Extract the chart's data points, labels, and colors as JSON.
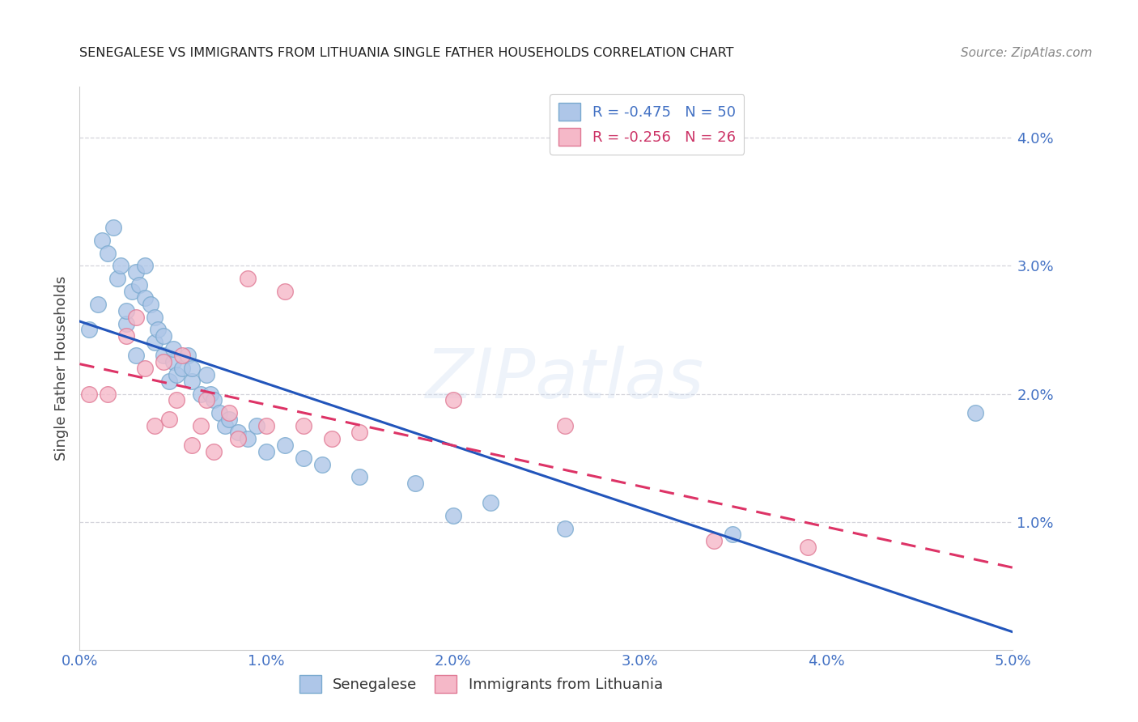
{
  "title": "SENEGALESE VS IMMIGRANTS FROM LITHUANIA SINGLE FATHER HOUSEHOLDS CORRELATION CHART",
  "source": "Source: ZipAtlas.com",
  "ylabel": "Single Father Households",
  "xlim": [
    0.0,
    0.05
  ],
  "ylim": [
    0.0,
    0.044
  ],
  "xticks": [
    0.0,
    0.01,
    0.02,
    0.03,
    0.04,
    0.05
  ],
  "xticklabels": [
    "0.0%",
    "1.0%",
    "2.0%",
    "3.0%",
    "4.0%",
    "5.0%"
  ],
  "yticks": [
    0.01,
    0.02,
    0.03,
    0.04
  ],
  "yticklabels": [
    "1.0%",
    "2.0%",
    "3.0%",
    "4.0%"
  ],
  "background_color": "#ffffff",
  "grid_color": "#d0d0d8",
  "watermark": "ZIPatlas",
  "senegalese_color": "#aec6e8",
  "senegalese_edge": "#7aaacf",
  "lithuania_color": "#f5b8c8",
  "lithuania_edge": "#e07a95",
  "blue_line_color": "#2255bb",
  "pink_line_color": "#dd3366",
  "tick_color": "#4472c4",
  "title_color": "#222222",
  "source_color": "#888888",
  "ylabel_color": "#444444",
  "senegalese_x": [
    0.0005,
    0.001,
    0.0012,
    0.0015,
    0.0018,
    0.002,
    0.0022,
    0.0025,
    0.0025,
    0.0028,
    0.003,
    0.003,
    0.0032,
    0.0035,
    0.0035,
    0.0038,
    0.004,
    0.004,
    0.0042,
    0.0045,
    0.0045,
    0.0048,
    0.005,
    0.005,
    0.0052,
    0.0055,
    0.0058,
    0.006,
    0.006,
    0.0065,
    0.0068,
    0.007,
    0.0072,
    0.0075,
    0.0078,
    0.008,
    0.0085,
    0.009,
    0.0095,
    0.01,
    0.011,
    0.012,
    0.013,
    0.015,
    0.018,
    0.02,
    0.022,
    0.026,
    0.035,
    0.048
  ],
  "senegalese_y": [
    0.025,
    0.027,
    0.032,
    0.031,
    0.033,
    0.029,
    0.03,
    0.0255,
    0.0265,
    0.028,
    0.023,
    0.0295,
    0.0285,
    0.0275,
    0.03,
    0.027,
    0.024,
    0.026,
    0.025,
    0.023,
    0.0245,
    0.021,
    0.0225,
    0.0235,
    0.0215,
    0.022,
    0.023,
    0.021,
    0.022,
    0.02,
    0.0215,
    0.02,
    0.0195,
    0.0185,
    0.0175,
    0.018,
    0.017,
    0.0165,
    0.0175,
    0.0155,
    0.016,
    0.015,
    0.0145,
    0.0135,
    0.013,
    0.0105,
    0.0115,
    0.0095,
    0.009,
    0.0185
  ],
  "lithuania_x": [
    0.0005,
    0.0015,
    0.0025,
    0.003,
    0.0035,
    0.004,
    0.0045,
    0.0048,
    0.0052,
    0.0055,
    0.006,
    0.0065,
    0.0068,
    0.0072,
    0.008,
    0.0085,
    0.009,
    0.01,
    0.011,
    0.012,
    0.0135,
    0.015,
    0.02,
    0.026,
    0.034,
    0.039
  ],
  "lithuania_y": [
    0.02,
    0.02,
    0.0245,
    0.026,
    0.022,
    0.0175,
    0.0225,
    0.018,
    0.0195,
    0.023,
    0.016,
    0.0175,
    0.0195,
    0.0155,
    0.0185,
    0.0165,
    0.029,
    0.0175,
    0.028,
    0.0175,
    0.0165,
    0.017,
    0.0195,
    0.0175,
    0.0085,
    0.008
  ]
}
